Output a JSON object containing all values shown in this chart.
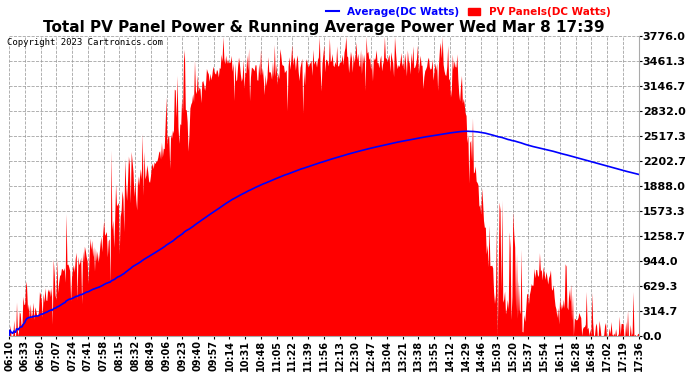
{
  "title": "Total PV Panel Power & Running Average Power Wed Mar 8 17:39",
  "copyright": "Copyright 2023 Cartronics.com",
  "legend_avg": "Average(DC Watts)",
  "legend_pv": "PV Panels(DC Watts)",
  "avg_color": "blue",
  "pv_color": "red",
  "yticks": [
    0.0,
    314.7,
    629.3,
    944.0,
    1258.7,
    1573.3,
    1888.0,
    2202.7,
    2517.3,
    2832.0,
    3146.7,
    3461.3,
    3776.0
  ],
  "xtick_labels": [
    "06:10",
    "06:33",
    "06:50",
    "07:07",
    "07:24",
    "07:41",
    "07:58",
    "08:15",
    "08:32",
    "08:49",
    "09:06",
    "09:23",
    "09:40",
    "09:57",
    "10:14",
    "10:31",
    "10:48",
    "11:05",
    "11:22",
    "11:39",
    "11:56",
    "12:13",
    "12:30",
    "12:47",
    "13:04",
    "13:21",
    "13:38",
    "13:55",
    "14:12",
    "14:29",
    "14:46",
    "15:03",
    "15:20",
    "15:37",
    "15:54",
    "16:11",
    "16:28",
    "16:45",
    "17:02",
    "17:19",
    "17:36"
  ],
  "background_color": "#ffffff",
  "grid_color": "#999999",
  "title_fontsize": 11,
  "ylabel_fontsize": 8,
  "xlabel_fontsize": 7,
  "ymax": 3776.0,
  "ymin": 0.0
}
